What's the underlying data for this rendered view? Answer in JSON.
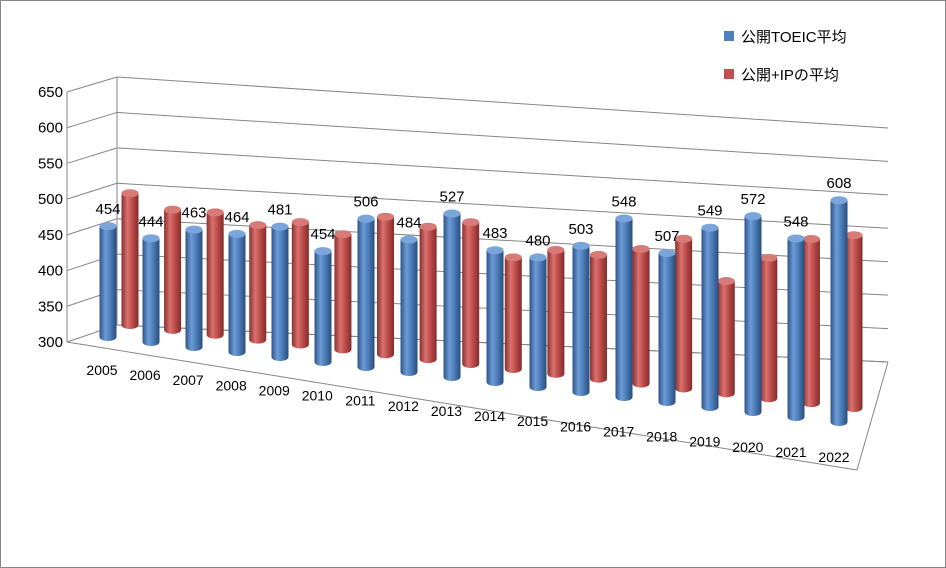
{
  "chart_data": {
    "type": "bar",
    "style": "3d-cylinder",
    "categories": [
      "2005",
      "2006",
      "2007",
      "2008",
      "2009",
      "2010",
      "2011",
      "2012",
      "2013",
      "2014",
      "2015",
      "2016",
      "2017",
      "2018",
      "2019",
      "2020",
      "2021",
      "2022"
    ],
    "series": [
      {
        "name": "公開TOEIC平均",
        "color": "#4f81bd",
        "values": [
          454,
          444,
          463,
          464,
          481,
          454,
          506,
          484,
          527,
          483,
          480,
          503,
          548,
          507,
          549,
          572,
          548,
          608
        ],
        "labels": [
          "454",
          "444",
          "463",
          "464",
          "481",
          "454",
          "506",
          "484",
          "527",
          "483",
          "480",
          "503",
          "548",
          "507",
          "549",
          "572",
          "548",
          "608"
        ]
      },
      {
        "name": "公開+IPの平均",
        "color": "#c0504d",
        "values": [
          483,
          467,
          470,
          459,
          470,
          460,
          491,
          484,
          497,
          455,
          472,
          472,
          487,
          508,
          456,
          495,
          528,
          540
        ]
      }
    ],
    "yticks": [
      "300",
      "350",
      "400",
      "450",
      "500",
      "550",
      "600",
      "650"
    ],
    "ylim": [
      300,
      650
    ],
    "grid": true,
    "legend_position": "top-right"
  }
}
